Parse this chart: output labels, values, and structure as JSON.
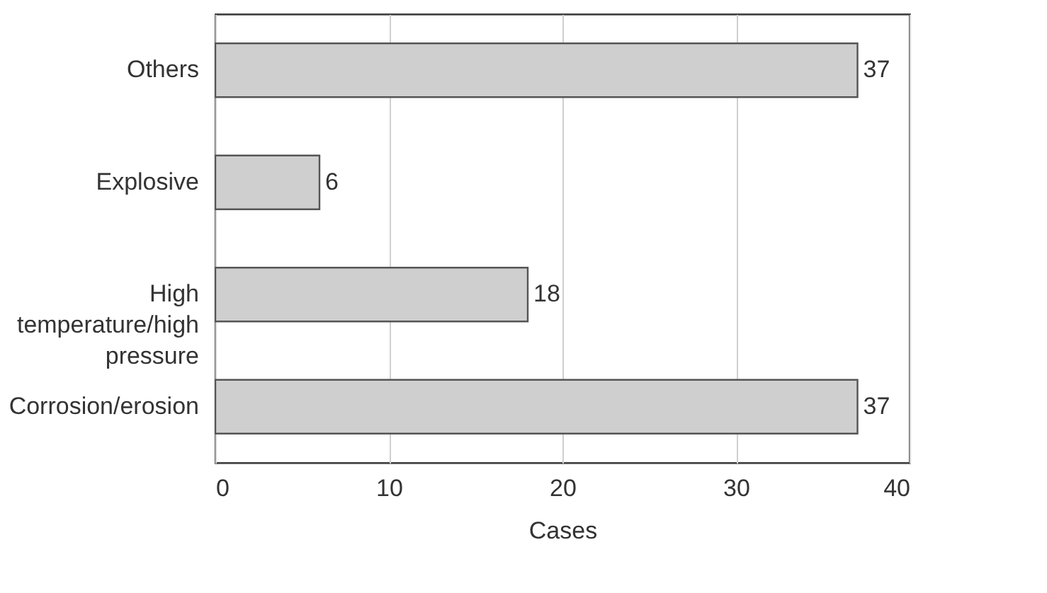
{
  "chart_data": {
    "type": "bar",
    "orientation": "horizontal",
    "xlabel": "Cases",
    "categories": [
      "Others",
      "Explosive",
      "High temperature/high pressure",
      "Corrosion/erosion"
    ],
    "values": [
      37,
      6,
      18,
      37
    ],
    "color": "#cfcfcf",
    "xlim": [
      0,
      40
    ],
    "xticks": [
      0,
      10,
      20,
      30,
      40
    ],
    "grid": "x",
    "data_labels": true
  }
}
